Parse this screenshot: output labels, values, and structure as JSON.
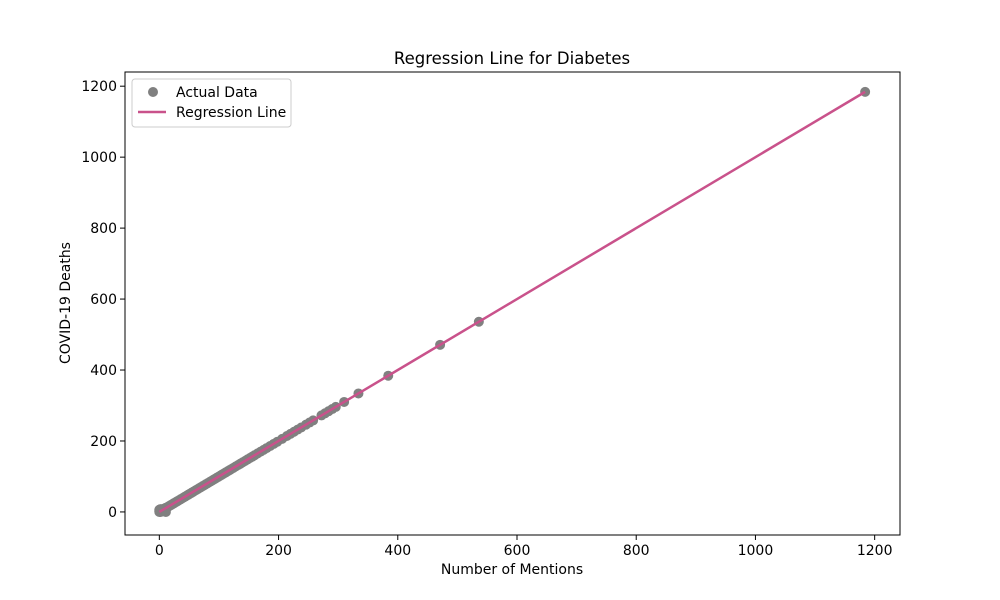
{
  "chart_data": {
    "type": "scatter",
    "title": "Regression Line for Diabetes",
    "xlabel": "Number of Mentions",
    "ylabel": "COVID-19 Deaths",
    "xlim": [
      -57.6,
      1242.5
    ],
    "ylim": [
      -65,
      1240
    ],
    "xticks": [
      0,
      200,
      400,
      600,
      800,
      1000,
      1200
    ],
    "yticks": [
      0,
      200,
      400,
      600,
      800,
      1000,
      1200
    ],
    "grid": false,
    "legend_position": "top-left",
    "colors": {
      "scatter": "#808080",
      "line": "#c9528b"
    },
    "series": [
      {
        "name": "Actual Data",
        "kind": "scatter",
        "points": [
          [
            0,
            0
          ],
          [
            0,
            2
          ],
          [
            0,
            4
          ],
          [
            0,
            6
          ],
          [
            1,
            1
          ],
          [
            1,
            3
          ],
          [
            1,
            5
          ],
          [
            1,
            7
          ],
          [
            2,
            0
          ],
          [
            2,
            2
          ],
          [
            2,
            4
          ],
          [
            2,
            8
          ],
          [
            3,
            1
          ],
          [
            3,
            3
          ],
          [
            3,
            5
          ],
          [
            4,
            2
          ],
          [
            4,
            6
          ],
          [
            5,
            4
          ],
          [
            5,
            8
          ],
          [
            6,
            6
          ],
          [
            7,
            3
          ],
          [
            8,
            9
          ],
          [
            9,
            1
          ],
          [
            9,
            5
          ],
          [
            10,
            11
          ],
          [
            11,
            0
          ],
          [
            12,
            12
          ],
          [
            14,
            14
          ],
          [
            16,
            16
          ],
          [
            18,
            18
          ],
          [
            20,
            20
          ],
          [
            22,
            22
          ],
          [
            24,
            24
          ],
          [
            26,
            26
          ],
          [
            28,
            28
          ],
          [
            30,
            30
          ],
          [
            33,
            33
          ],
          [
            36,
            36
          ],
          [
            39,
            39
          ],
          [
            42,
            42
          ],
          [
            45,
            45
          ],
          [
            48,
            48
          ],
          [
            51,
            51
          ],
          [
            54,
            54
          ],
          [
            57,
            57
          ],
          [
            60,
            60
          ],
          [
            63,
            63
          ],
          [
            66,
            66
          ],
          [
            69,
            69
          ],
          [
            72,
            72
          ],
          [
            75,
            75
          ],
          [
            78,
            78
          ],
          [
            81,
            81
          ],
          [
            84,
            84
          ],
          [
            87,
            87
          ],
          [
            90,
            90
          ],
          [
            93,
            93
          ],
          [
            96,
            96
          ],
          [
            99,
            99
          ],
          [
            102,
            102
          ],
          [
            105,
            105
          ],
          [
            108,
            108
          ],
          [
            111,
            111
          ],
          [
            114,
            114
          ],
          [
            117,
            117
          ],
          [
            120,
            120
          ],
          [
            124,
            124
          ],
          [
            128,
            128
          ],
          [
            132,
            132
          ],
          [
            136,
            136
          ],
          [
            140,
            140
          ],
          [
            144,
            144
          ],
          [
            148,
            148
          ],
          [
            152,
            152
          ],
          [
            156,
            156
          ],
          [
            160,
            160
          ],
          [
            165,
            165
          ],
          [
            170,
            170
          ],
          [
            175,
            175
          ],
          [
            180,
            180
          ],
          [
            186,
            186
          ],
          [
            192,
            192
          ],
          [
            198,
            198
          ],
          [
            206,
            206
          ],
          [
            214,
            214
          ],
          [
            220,
            220
          ],
          [
            226,
            226
          ],
          [
            232,
            232
          ],
          [
            238,
            238
          ],
          [
            246,
            246
          ],
          [
            252,
            252
          ],
          [
            258,
            258
          ],
          [
            272,
            272
          ],
          [
            278,
            278
          ],
          [
            284,
            284
          ],
          [
            290,
            290
          ],
          [
            296,
            296
          ],
          [
            310,
            310
          ],
          [
            334,
            334
          ],
          [
            384,
            384
          ],
          [
            471,
            471
          ],
          [
            536,
            536
          ],
          [
            1184,
            1184
          ]
        ]
      },
      {
        "name": "Regression Line",
        "kind": "line",
        "points": [
          [
            0,
            0
          ],
          [
            1184,
            1184
          ]
        ]
      }
    ]
  }
}
